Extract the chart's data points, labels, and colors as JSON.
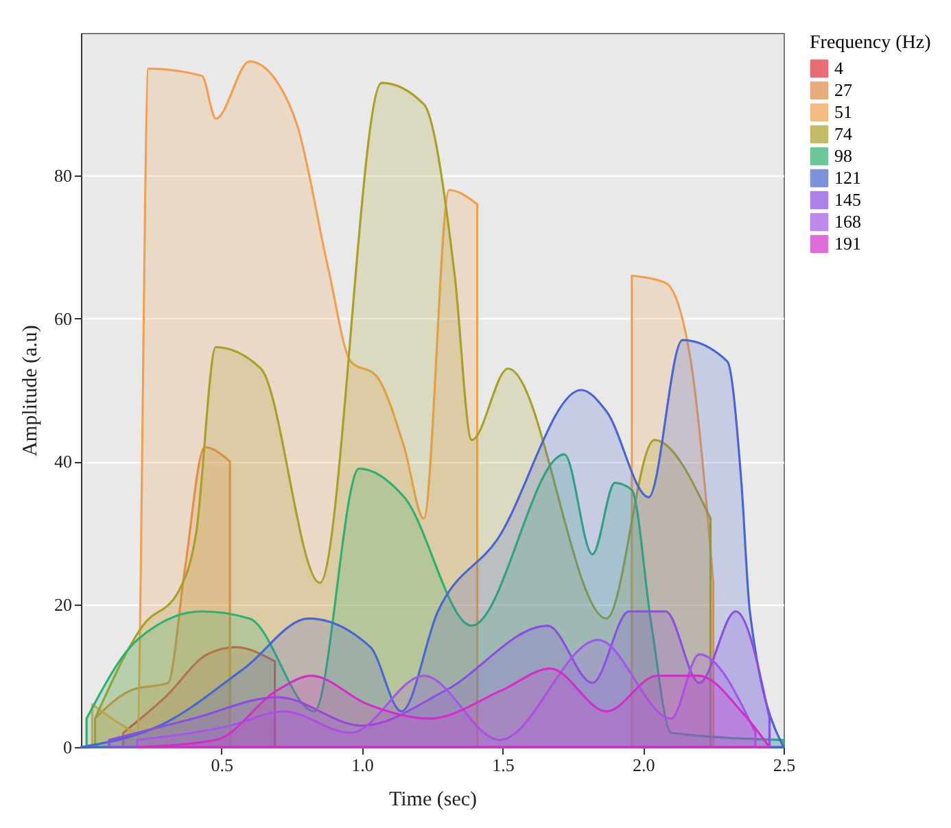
{
  "chart_data": {
    "type": "area",
    "xlabel": "Time (sec)",
    "ylabel": "Amplitude (a.u)",
    "legend_title": "Frequency (Hz)",
    "legend": "right",
    "grid": "y",
    "xlim": [
      0,
      2.5
    ],
    "xticks": [
      0.5,
      {
        "value": 1,
        "label": "1.0"
      },
      1.5,
      {
        "value": 2,
        "label": "2.0"
      },
      2.5
    ],
    "ylim": [
      0,
      100
    ],
    "yticks": [
      0,
      20,
      40,
      60,
      80
    ],
    "series": [
      {
        "name": "4",
        "color": "#e0303c",
        "x": [
          0.15,
          0.3,
          0.45,
          0.55,
          0.69
        ],
        "values": [
          2,
          7,
          13,
          14,
          12
        ]
      },
      {
        "name": "27",
        "color": "#e08a48",
        "x": [
          0.05,
          0.18,
          0.31,
          0.37,
          0.44,
          0.53
        ],
        "values": [
          4,
          8,
          9,
          25,
          42,
          40
        ]
      },
      {
        "name": "51",
        "color": "#f0a050",
        "x": [
          0.04,
          0.15,
          0.2,
          0.24,
          0.43,
          0.48,
          0.6,
          0.7,
          0.77,
          0.88,
          0.96,
          1.05,
          1.15,
          1.22,
          1.31,
          1.41,
          1.65,
          1.96,
          2.08,
          2.17,
          2.25
        ],
        "values": [
          6,
          3,
          2,
          95,
          94,
          88,
          96,
          93,
          87,
          67,
          54,
          52,
          42,
          32,
          78,
          76,
          null,
          66,
          65,
          54,
          23
        ]
      },
      {
        "name": "74",
        "color": "#a8a028",
        "x": [
          0.05,
          0.22,
          0.35,
          0.41,
          0.48,
          0.64,
          0.85,
          1.07,
          1.22,
          1.33,
          1.39,
          1.52,
          1.87,
          2.04,
          2.24
        ],
        "values": [
          4,
          17,
          22,
          30,
          56,
          53,
          23,
          93,
          90,
          66,
          43,
          53,
          18,
          43,
          32
        ]
      },
      {
        "name": "98",
        "color": "#30b070",
        "x": [
          0.02,
          0.2,
          0.43,
          0.6,
          0.83,
          0.99,
          1.15,
          1.39,
          1.72,
          1.82,
          1.9,
          1.96,
          2.03,
          2.1,
          2.5
        ],
        "values": [
          4,
          15,
          19,
          18,
          5,
          39,
          35,
          17,
          41,
          27,
          37,
          36,
          17,
          2,
          1
        ]
      },
      {
        "name": "121",
        "color": "#4a66d0",
        "x": [
          0,
          0.28,
          0.58,
          0.81,
          1.03,
          1.14,
          1.27,
          1.48,
          1.78,
          1.87,
          2.02,
          2.14,
          2.3,
          2.35,
          2.38,
          2.5
        ],
        "values": [
          0,
          3,
          11,
          18,
          14,
          5,
          19,
          29,
          50,
          47,
          35,
          57,
          54,
          37,
          19,
          0
        ]
      },
      {
        "name": "145",
        "color": "#8a4ee0",
        "x": [
          0.1,
          0.4,
          0.7,
          1.0,
          1.3,
          1.66,
          1.82,
          1.95,
          2.08,
          2.2,
          2.33,
          2.45
        ],
        "values": [
          1,
          4,
          7,
          3,
          8,
          17,
          9,
          19,
          19,
          9,
          19,
          4
        ]
      },
      {
        "name": "168",
        "color": "#a458e8",
        "x": [
          0.2,
          0.53,
          0.72,
          0.96,
          1.22,
          1.49,
          1.84,
          2.1,
          2.2,
          2.4
        ],
        "values": [
          1,
          3,
          5,
          2,
          10,
          1,
          15,
          4,
          13,
          2
        ]
      },
      {
        "name": "191",
        "color": "#d030c8",
        "x": [
          0.2,
          0.48,
          0.7,
          0.82,
          1.02,
          1.24,
          1.5,
          1.67,
          1.87,
          2.05,
          2.2,
          2.35,
          2.45
        ],
        "values": [
          0,
          1,
          8,
          10,
          6,
          4,
          8,
          11,
          5,
          10,
          10,
          5,
          0
        ]
      }
    ]
  }
}
